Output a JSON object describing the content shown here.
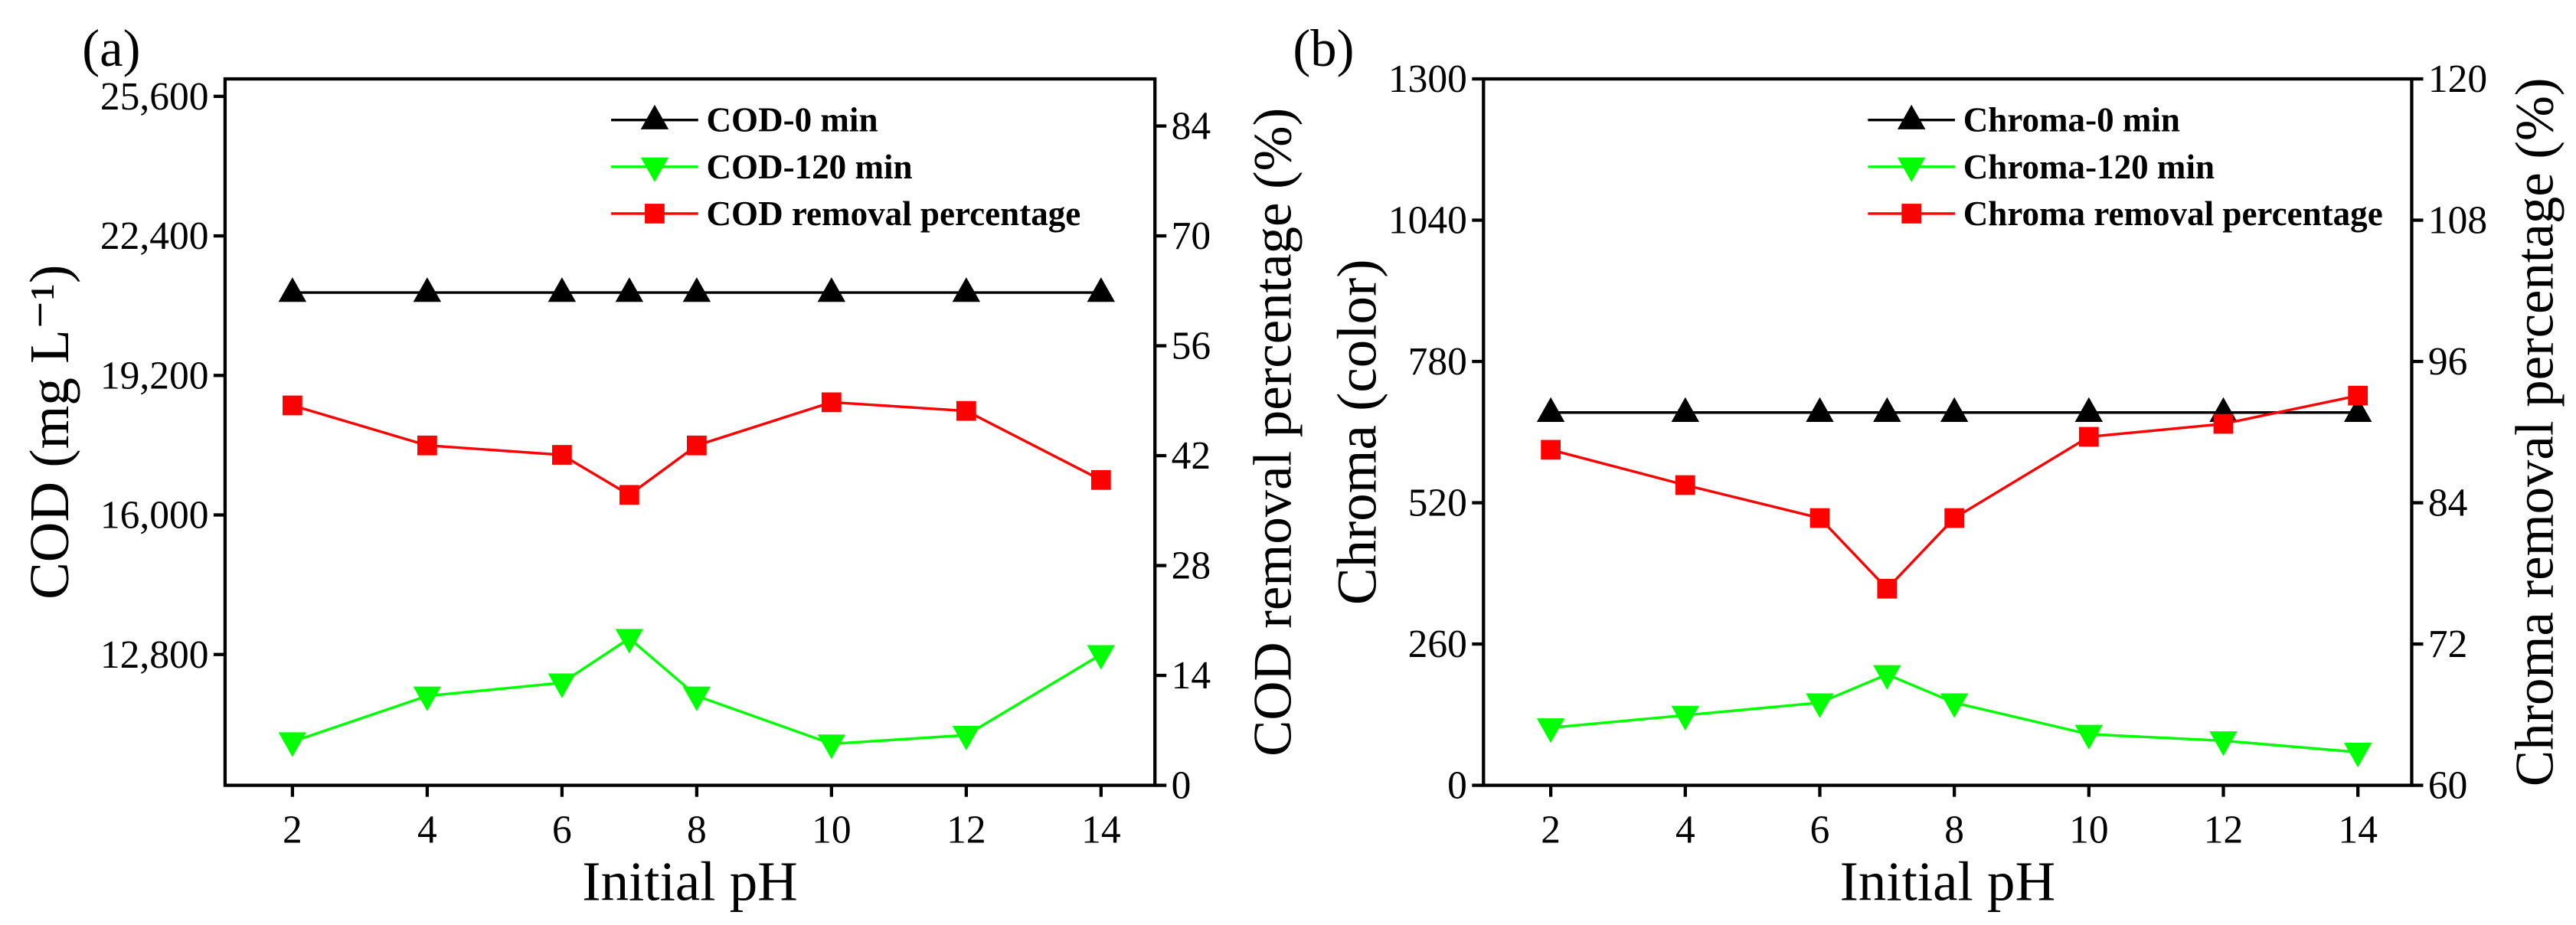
{
  "chart_data": [
    {
      "panel_label": "(a)",
      "type": "line",
      "x": [
        2,
        4,
        6,
        7,
        8,
        10,
        12,
        14
      ],
      "xlabel": "Initial pH",
      "xlim": [
        1,
        14.8
      ],
      "xticks": [
        2,
        4,
        6,
        8,
        10,
        12,
        14
      ],
      "xtick_labels": [
        "2",
        "4",
        "6",
        "8",
        "10",
        "12",
        "14"
      ],
      "ylabel": "COD (mg L⁻¹)",
      "ylim": [
        9800,
        26000
      ],
      "yticks": [
        12800,
        16000,
        19200,
        22400,
        25600
      ],
      "ytick_labels": [
        "12,800",
        "16,000",
        "19,200",
        "22,400",
        "25,600"
      ],
      "y2label": "COD removal percentage (%)",
      "y2lim": [
        0,
        90
      ],
      "y2ticks": [
        0,
        14,
        28,
        42,
        56,
        70,
        84
      ],
      "y2tick_labels": [
        "0",
        "14",
        "28",
        "42",
        "56",
        "70",
        "84"
      ],
      "grid": false,
      "legend_position": "top-right",
      "series": [
        {
          "name": "COD-0 min",
          "axis": "left",
          "color": "#000000",
          "marker": "triangle-up",
          "values": [
            21100,
            21100,
            21100,
            21100,
            21100,
            21100,
            21100,
            21100
          ]
        },
        {
          "name": "COD-120 min",
          "axis": "left",
          "color": "#00FF00",
          "marker": "triangle-down",
          "values": [
            10800,
            11850,
            12150,
            13170,
            11850,
            10750,
            10950,
            12800
          ]
        },
        {
          "name": "COD removal percentage",
          "axis": "right",
          "color": "#FF0000",
          "marker": "square",
          "values": [
            48.4,
            43.3,
            42.1,
            37.0,
            43.3,
            48.8,
            47.7,
            38.9
          ]
        }
      ]
    },
    {
      "panel_label": "(b)",
      "type": "line",
      "x": [
        2,
        4,
        6,
        7,
        8,
        10,
        12,
        14
      ],
      "xlabel": "Initial pH",
      "xlim": [
        1,
        14.8
      ],
      "xticks": [
        2,
        4,
        6,
        8,
        10,
        12,
        14
      ],
      "xtick_labels": [
        "2",
        "4",
        "6",
        "8",
        "10",
        "12",
        "14"
      ],
      "ylabel": "Chroma (color)",
      "ylim": [
        0,
        1300
      ],
      "yticks": [
        0,
        260,
        520,
        780,
        1040,
        1300
      ],
      "ytick_labels": [
        "0",
        "260",
        "520",
        "780",
        "1040",
        "1300"
      ],
      "y2label": "Chroma removal percentage (%)",
      "y2lim": [
        60,
        120
      ],
      "y2ticks": [
        60,
        72,
        84,
        96,
        108,
        120
      ],
      "y2tick_labels": [
        "60",
        "72",
        "84",
        "96",
        "108",
        "120"
      ],
      "grid": false,
      "legend_position": "top-right",
      "series": [
        {
          "name": "Chroma-0 min",
          "axis": "left",
          "color": "#000000",
          "marker": "triangle-up",
          "values": [
            686,
            686,
            686,
            686,
            686,
            686,
            686,
            686
          ]
        },
        {
          "name": "Chroma-120 min",
          "axis": "left",
          "color": "#00FF00",
          "marker": "triangle-down",
          "values": [
            106,
            129,
            152,
            204,
            152,
            94,
            82,
            61
          ]
        },
        {
          "name": "Chroma removal percentage",
          "axis": "right",
          "color": "#FF0000",
          "marker": "square",
          "values": [
            88.5,
            85.5,
            82.7,
            76.7,
            82.7,
            89.6,
            90.7,
            93.1
          ]
        }
      ]
    }
  ]
}
